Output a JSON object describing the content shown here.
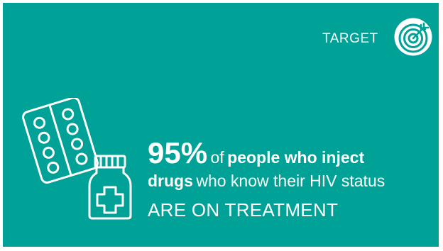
{
  "target": {
    "label": "TARGET",
    "icon": "target-icon"
  },
  "illustration": {
    "icon": "pills-and-medicine-bottle-icon"
  },
  "headline": {
    "percent": "95%",
    "of": "of",
    "group_part1": "people who inject",
    "group_part2": "drugs",
    "status_text": "who know their HIV status",
    "outcome": "ARE ON TREATMENT"
  },
  "colors": {
    "background": "#00a196",
    "foreground": "#ffffff"
  }
}
